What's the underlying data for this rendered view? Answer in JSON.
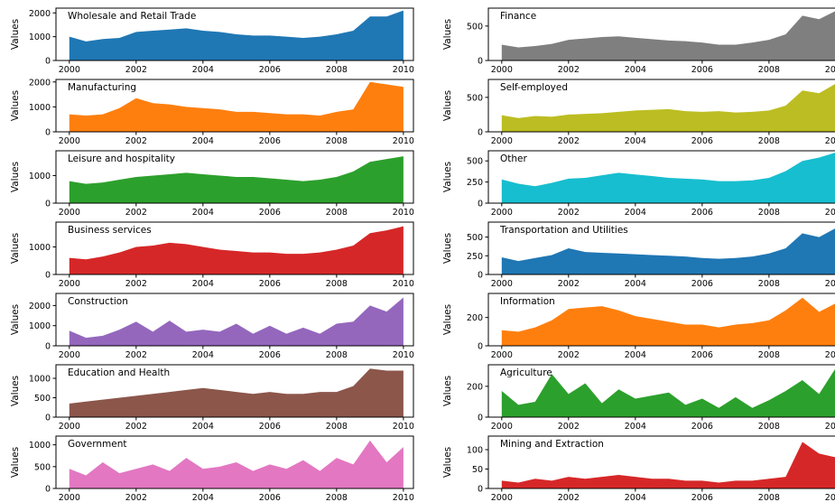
{
  "chart_data": [
    {
      "type": "area",
      "title": "Wholesale and Retail Trade",
      "ylabel": "Values",
      "color": "#1f77b4",
      "xlim": [
        1999.6,
        2010.3
      ],
      "ylim": [
        0,
        2200
      ],
      "yticks": [
        0,
        1000,
        2000
      ],
      "xticks": [
        2000,
        2002,
        2004,
        2006,
        2008,
        2010
      ],
      "x": [
        2000,
        2000.5,
        2001,
        2001.5,
        2002,
        2002.5,
        2003,
        2003.5,
        2004,
        2004.5,
        2005,
        2005.5,
        2006,
        2006.5,
        2007,
        2007.5,
        2008,
        2008.5,
        2009,
        2009.5,
        2010
      ],
      "values": [
        1000,
        800,
        900,
        950,
        1200,
        1250,
        1300,
        1350,
        1250,
        1200,
        1100,
        1050,
        1050,
        1000,
        950,
        1000,
        1100,
        1250,
        1850,
        1850,
        2100
      ]
    },
    {
      "type": "area",
      "title": "Manufacturing",
      "ylabel": "Values",
      "color": "#ff7f0e",
      "xlim": [
        1999.6,
        2010.3
      ],
      "ylim": [
        0,
        2100
      ],
      "yticks": [
        0,
        1000,
        2000
      ],
      "xticks": [
        2000,
        2002,
        2004,
        2006,
        2008,
        2010
      ],
      "x": [
        2000,
        2000.5,
        2001,
        2001.5,
        2002,
        2002.5,
        2003,
        2003.5,
        2004,
        2004.5,
        2005,
        2005.5,
        2006,
        2006.5,
        2007,
        2007.5,
        2008,
        2008.5,
        2009,
        2009.5,
        2010
      ],
      "values": [
        700,
        650,
        700,
        950,
        1350,
        1150,
        1100,
        1000,
        950,
        900,
        800,
        800,
        750,
        700,
        700,
        650,
        800,
        900,
        2000,
        1900,
        1800
      ]
    },
    {
      "type": "area",
      "title": "Leisure and hospitality",
      "ylabel": "Values",
      "color": "#2ca02c",
      "xlim": [
        1999.6,
        2010.3
      ],
      "ylim": [
        0,
        1900
      ],
      "yticks": [
        0,
        1000
      ],
      "xticks": [
        2000,
        2002,
        2004,
        2006,
        2008,
        2010
      ],
      "x": [
        2000,
        2000.5,
        2001,
        2001.5,
        2002,
        2002.5,
        2003,
        2003.5,
        2004,
        2004.5,
        2005,
        2005.5,
        2006,
        2006.5,
        2007,
        2007.5,
        2008,
        2008.5,
        2009,
        2009.5,
        2010
      ],
      "values": [
        800,
        700,
        750,
        850,
        950,
        1000,
        1050,
        1100,
        1050,
        1000,
        950,
        950,
        900,
        850,
        800,
        850,
        950,
        1150,
        1500,
        1600,
        1700
      ]
    },
    {
      "type": "area",
      "title": "Business services",
      "ylabel": "Values",
      "color": "#d62728",
      "xlim": [
        1999.6,
        2010.3
      ],
      "ylim": [
        0,
        1900
      ],
      "yticks": [
        0,
        1000
      ],
      "xticks": [
        2000,
        2002,
        2004,
        2006,
        2008,
        2010
      ],
      "x": [
        2000,
        2000.5,
        2001,
        2001.5,
        2002,
        2002.5,
        2003,
        2003.5,
        2004,
        2004.5,
        2005,
        2005.5,
        2006,
        2006.5,
        2007,
        2007.5,
        2008,
        2008.5,
        2009,
        2009.5,
        2010
      ],
      "values": [
        600,
        550,
        650,
        800,
        1000,
        1050,
        1150,
        1100,
        1000,
        900,
        850,
        800,
        800,
        750,
        750,
        800,
        900,
        1050,
        1500,
        1600,
        1750
      ]
    },
    {
      "type": "area",
      "title": "Construction",
      "ylabel": "Values",
      "color": "#9467bd",
      "xlim": [
        1999.6,
        2010.3
      ],
      "ylim": [
        0,
        2600
      ],
      "yticks": [
        0,
        1000,
        2000
      ],
      "xticks": [
        2000,
        2002,
        2004,
        2006,
        2008,
        2010
      ],
      "x": [
        2000,
        2000.5,
        2001,
        2001.5,
        2002,
        2002.5,
        2003,
        2003.5,
        2004,
        2004.5,
        2005,
        2005.5,
        2006,
        2006.5,
        2007,
        2007.5,
        2008,
        2008.5,
        2009,
        2009.5,
        2010
      ],
      "values": [
        750,
        400,
        500,
        800,
        1200,
        700,
        1250,
        700,
        800,
        700,
        1100,
        600,
        1000,
        600,
        900,
        600,
        1100,
        1200,
        2000,
        1700,
        2400
      ]
    },
    {
      "type": "area",
      "title": "Education and Health",
      "ylabel": "Values",
      "color": "#8c564b",
      "xlim": [
        1999.6,
        2010.3
      ],
      "ylim": [
        0,
        1350
      ],
      "yticks": [
        0,
        500,
        1000
      ],
      "xticks": [
        2000,
        2002,
        2004,
        2006,
        2008,
        2010
      ],
      "x": [
        2000,
        2000.5,
        2001,
        2001.5,
        2002,
        2002.5,
        2003,
        2003.5,
        2004,
        2004.5,
        2005,
        2005.5,
        2006,
        2006.5,
        2007,
        2007.5,
        2008,
        2008.5,
        2009,
        2009.5,
        2010
      ],
      "values": [
        350,
        400,
        450,
        500,
        550,
        600,
        650,
        700,
        750,
        700,
        650,
        600,
        650,
        600,
        600,
        650,
        650,
        800,
        1250,
        1200,
        1200
      ]
    },
    {
      "type": "area",
      "title": "Government",
      "ylabel": "Values",
      "color": "#e377c2",
      "xlim": [
        1999.6,
        2010.3
      ],
      "ylim": [
        0,
        1200
      ],
      "yticks": [
        0,
        500,
        1000
      ],
      "xticks": [
        2000,
        2002,
        2004,
        2006,
        2008,
        2010
      ],
      "x": [
        2000,
        2000.5,
        2001,
        2001.5,
        2002,
        2002.5,
        2003,
        2003.5,
        2004,
        2004.5,
        2005,
        2005.5,
        2006,
        2006.5,
        2007,
        2007.5,
        2008,
        2008.5,
        2009,
        2009.5,
        2010
      ],
      "values": [
        450,
        300,
        600,
        350,
        450,
        550,
        400,
        700,
        450,
        500,
        600,
        400,
        550,
        450,
        650,
        400,
        700,
        550,
        1100,
        600,
        950
      ]
    },
    {
      "type": "area",
      "title": "Finance",
      "ylabel": "Values",
      "color": "#7f7f7f",
      "xlim": [
        1999.6,
        2010.3
      ],
      "ylim": [
        0,
        760
      ],
      "yticks": [
        0,
        500
      ],
      "xticks": [
        2000,
        2002,
        2004,
        2006,
        2008,
        2010
      ],
      "x": [
        2000,
        2000.5,
        2001,
        2001.5,
        2002,
        2002.5,
        2003,
        2003.5,
        2004,
        2004.5,
        2005,
        2005.5,
        2006,
        2006.5,
        2007,
        2007.5,
        2008,
        2008.5,
        2009,
        2009.5,
        2010
      ],
      "values": [
        230,
        190,
        210,
        240,
        300,
        320,
        340,
        350,
        330,
        310,
        290,
        280,
        260,
        230,
        230,
        260,
        300,
        380,
        650,
        600,
        720
      ]
    },
    {
      "type": "area",
      "title": "Self-employed",
      "ylabel": "Values",
      "color": "#bcbd22",
      "xlim": [
        1999.6,
        2010.3
      ],
      "ylim": [
        0,
        760
      ],
      "yticks": [
        0,
        500
      ],
      "xticks": [
        2000,
        2002,
        2004,
        2006,
        2008,
        2010
      ],
      "x": [
        2000,
        2000.5,
        2001,
        2001.5,
        2002,
        2002.5,
        2003,
        2003.5,
        2004,
        2004.5,
        2005,
        2005.5,
        2006,
        2006.5,
        2007,
        2007.5,
        2008,
        2008.5,
        2009,
        2009.5,
        2010
      ],
      "values": [
        240,
        200,
        230,
        220,
        250,
        260,
        270,
        290,
        310,
        320,
        330,
        300,
        290,
        300,
        280,
        290,
        310,
        380,
        600,
        560,
        700
      ]
    },
    {
      "type": "area",
      "title": "Other",
      "ylabel": "Values",
      "color": "#17becf",
      "xlim": [
        1999.6,
        2010.3
      ],
      "ylim": [
        0,
        620
      ],
      "yticks": [
        0,
        250,
        500
      ],
      "xticks": [
        2000,
        2002,
        2004,
        2006,
        2008,
        2010
      ],
      "x": [
        2000,
        2000.5,
        2001,
        2001.5,
        2002,
        2002.5,
        2003,
        2003.5,
        2004,
        2004.5,
        2005,
        2005.5,
        2006,
        2006.5,
        2007,
        2007.5,
        2008,
        2008.5,
        2009,
        2009.5,
        2010
      ],
      "values": [
        280,
        230,
        200,
        240,
        290,
        300,
        330,
        360,
        340,
        320,
        300,
        290,
        280,
        260,
        260,
        270,
        300,
        380,
        500,
        540,
        600
      ]
    },
    {
      "type": "area",
      "title": "Transportation and Utilities",
      "ylabel": "Values",
      "color": "#1f77b4",
      "xlim": [
        1999.6,
        2010.3
      ],
      "ylim": [
        0,
        700
      ],
      "yticks": [
        0,
        250,
        500
      ],
      "xticks": [
        2000,
        2002,
        2004,
        2006,
        2008,
        2010
      ],
      "x": [
        2000,
        2000.5,
        2001,
        2001.5,
        2002,
        2002.5,
        2003,
        2003.5,
        2004,
        2004.5,
        2005,
        2005.5,
        2006,
        2006.5,
        2007,
        2007.5,
        2008,
        2008.5,
        2009,
        2009.5,
        2010
      ],
      "values": [
        230,
        180,
        220,
        260,
        350,
        300,
        290,
        280,
        270,
        260,
        250,
        240,
        220,
        210,
        220,
        240,
        280,
        350,
        550,
        500,
        620
      ]
    },
    {
      "type": "area",
      "title": "Information",
      "ylabel": "Values",
      "color": "#ff7f0e",
      "xlim": [
        1999.6,
        2010.3
      ],
      "ylim": [
        0,
        370
      ],
      "yticks": [
        0,
        200
      ],
      "xticks": [
        2000,
        2002,
        2004,
        2006,
        2008,
        2010
      ],
      "x": [
        2000,
        2000.5,
        2001,
        2001.5,
        2002,
        2002.5,
        2003,
        2003.5,
        2004,
        2004.5,
        2005,
        2005.5,
        2006,
        2006.5,
        2007,
        2007.5,
        2008,
        2008.5,
        2009,
        2009.5,
        2010
      ],
      "values": [
        110,
        100,
        130,
        180,
        260,
        270,
        280,
        250,
        210,
        190,
        170,
        150,
        150,
        130,
        150,
        160,
        180,
        250,
        340,
        240,
        300
      ]
    },
    {
      "type": "area",
      "title": "Agriculture",
      "ylabel": "Values",
      "color": "#2ca02c",
      "xlim": [
        1999.6,
        2010.3
      ],
      "ylim": [
        0,
        340
      ],
      "yticks": [
        0,
        200
      ],
      "xticks": [
        2000,
        2002,
        2004,
        2006,
        2008,
        2010
      ],
      "x": [
        2000,
        2000.5,
        2001,
        2001.5,
        2002,
        2002.5,
        2003,
        2003.5,
        2004,
        2004.5,
        2005,
        2005.5,
        2006,
        2006.5,
        2007,
        2007.5,
        2008,
        2008.5,
        2009,
        2009.5,
        2010
      ],
      "values": [
        170,
        80,
        100,
        280,
        150,
        220,
        90,
        180,
        120,
        140,
        160,
        80,
        120,
        60,
        130,
        60,
        110,
        170,
        240,
        150,
        320
      ]
    },
    {
      "type": "area",
      "title": "Mining and Extraction",
      "ylabel": "Values",
      "color": "#d62728",
      "xlim": [
        1999.6,
        2010.3
      ],
      "ylim": [
        0,
        135
      ],
      "yticks": [
        0,
        50,
        100
      ],
      "xticks": [
        2000,
        2002,
        2004,
        2006,
        2008,
        2010
      ],
      "x": [
        2000,
        2000.5,
        2001,
        2001.5,
        2002,
        2002.5,
        2003,
        2003.5,
        2004,
        2004.5,
        2005,
        2005.5,
        2006,
        2006.5,
        2007,
        2007.5,
        2008,
        2008.5,
        2009,
        2009.5,
        2010
      ],
      "values": [
        20,
        15,
        25,
        20,
        30,
        25,
        30,
        35,
        30,
        25,
        25,
        20,
        20,
        15,
        20,
        20,
        25,
        30,
        120,
        90,
        80
      ]
    }
  ]
}
